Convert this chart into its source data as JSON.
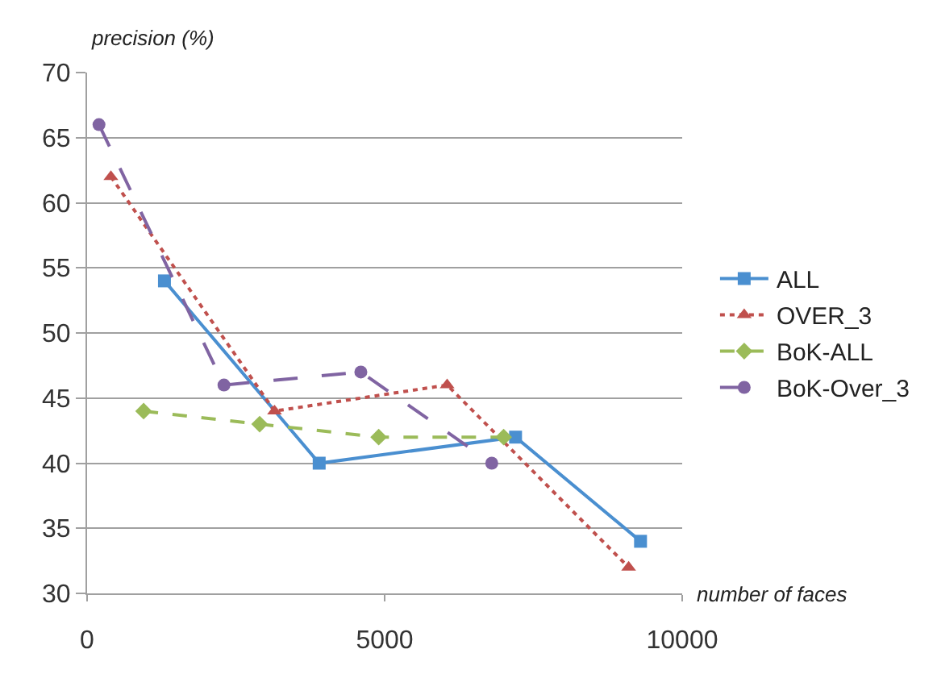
{
  "chart_data": {
    "type": "line",
    "xlabel": "number of faces",
    "ylabel": "precision (%)",
    "xlim": [
      0,
      10000
    ],
    "xticks": [
      0,
      5000,
      10000
    ],
    "ylim": [
      30,
      70
    ],
    "yticks": [
      30,
      35,
      40,
      45,
      50,
      55,
      60,
      65,
      70
    ],
    "grid": "y",
    "legend": "right",
    "series": [
      {
        "name": "ALL",
        "color": "#4a8fd0",
        "marker": "square",
        "line_style": "solid",
        "x": [
          1300,
          3900,
          7200,
          9300
        ],
        "values": [
          54,
          40,
          42,
          34
        ]
      },
      {
        "name": "OVER_3",
        "color": "#c0504d",
        "marker": "triangle",
        "line_style": "dotted",
        "x": [
          400,
          3150,
          6050,
          9100
        ],
        "values": [
          62,
          44,
          46,
          32
        ]
      },
      {
        "name": "BoK-ALL",
        "color": "#9bbb59",
        "marker": "diamond",
        "line_style": "dashed",
        "x": [
          950,
          2900,
          4900,
          7000
        ],
        "values": [
          44,
          43,
          42,
          42
        ]
      },
      {
        "name": "BoK-Over_3",
        "color": "#8064a2",
        "marker": "circle",
        "line_style": "longdash",
        "x": [
          200,
          2300,
          4600,
          6800
        ],
        "values": [
          66,
          46,
          47,
          40
        ]
      }
    ]
  }
}
